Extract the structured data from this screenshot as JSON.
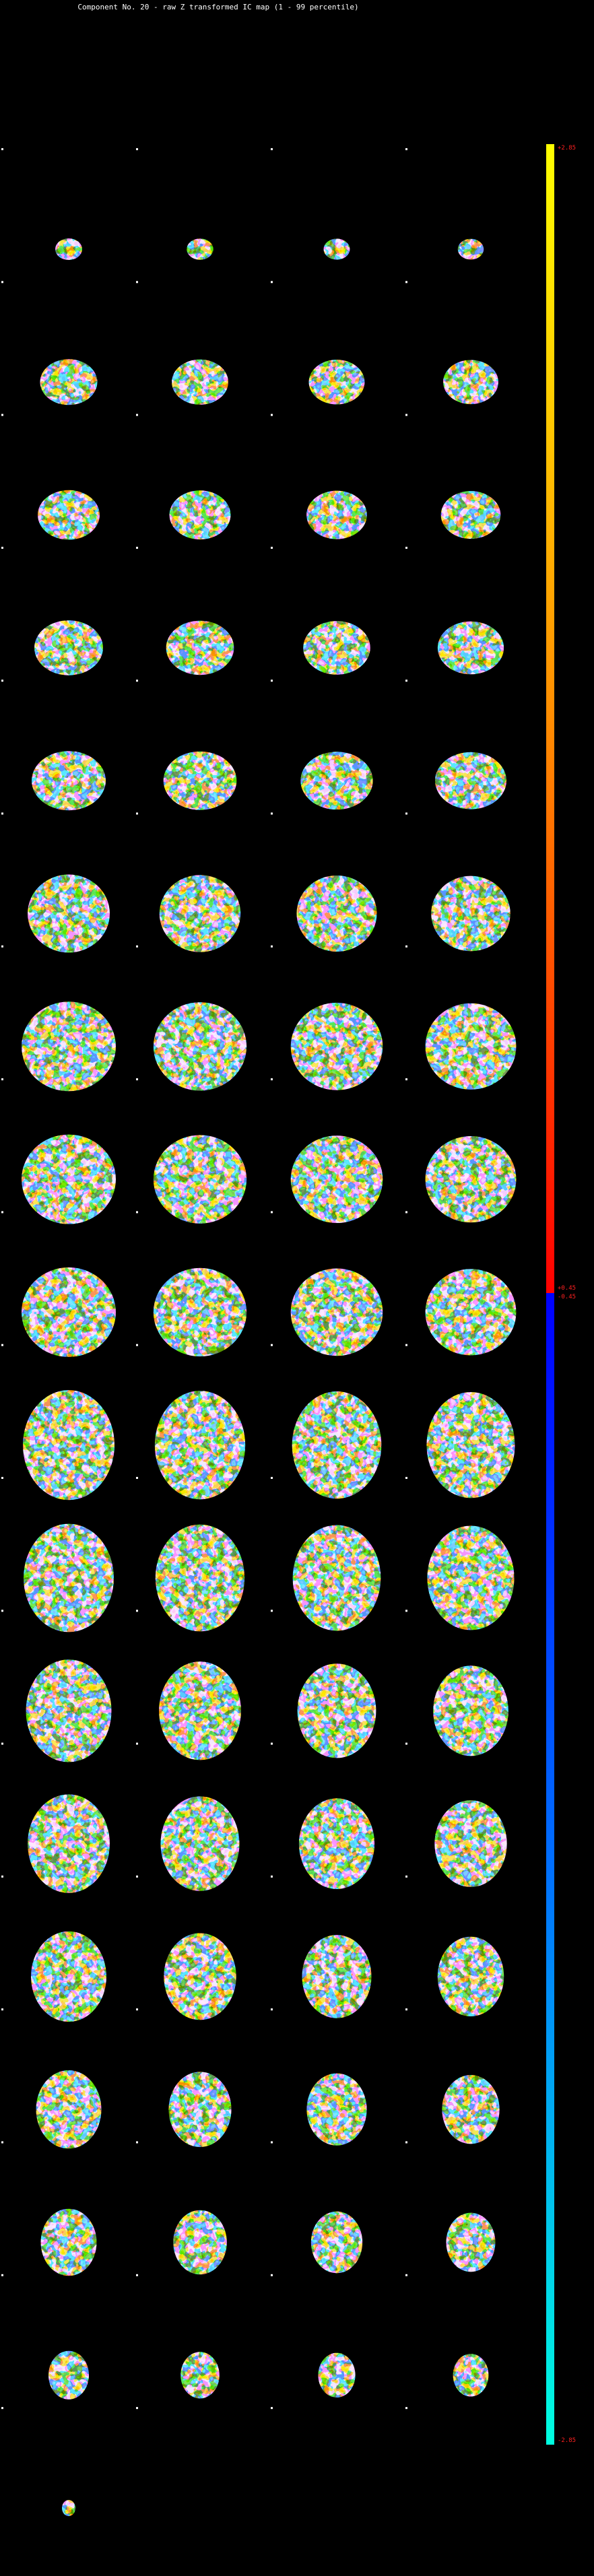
{
  "header": {
    "title": "Component No. 20 - raw Z transformed IC map (1 - 99 percentile)"
  },
  "colorbar": {
    "labels": [
      "+2.85",
      "+0.45",
      "-0.45",
      "-2.85"
    ]
  }
}
